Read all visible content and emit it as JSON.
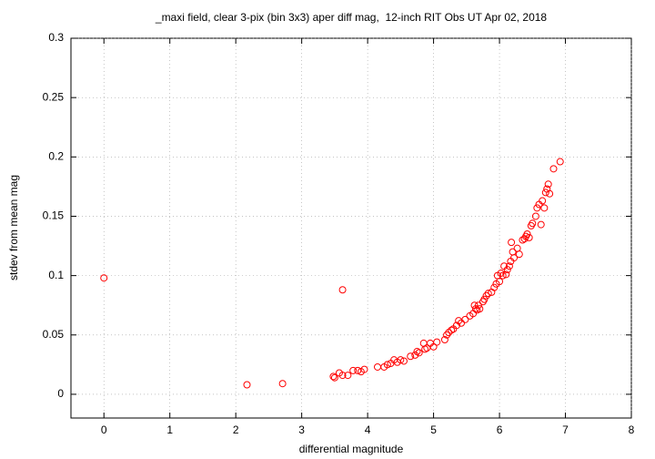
{
  "chart_data": {
    "type": "scatter",
    "title": "_maxi field, clear 3-pix (bin 3x3) aper diff mag,  12-inch RIT Obs UT Apr 02, 2018",
    "xlabel": "differential magnitude",
    "ylabel": "stdev from mean mag",
    "xlim": [
      -0.5,
      8
    ],
    "ylim": [
      -0.02,
      0.3
    ],
    "xticks": [
      0,
      1,
      2,
      3,
      4,
      5,
      6,
      7,
      8
    ],
    "yticks": [
      0,
      0.05,
      0.1,
      0.15,
      0.2,
      0.25,
      0.3
    ],
    "grid": true,
    "series": [
      {
        "color": "#ff0000",
        "x": [
          0,
          2.17,
          2.71,
          3.62,
          3.48,
          3.5,
          3.57,
          3.62,
          3.7,
          3.78,
          3.85,
          3.9,
          3.95,
          4.15,
          4.25,
          4.3,
          4.35,
          4.4,
          4.45,
          4.5,
          4.55,
          4.65,
          4.72,
          4.75,
          4.78,
          4.85,
          4.87,
          4.9,
          4.95,
          5.0,
          5.05,
          5.17,
          5.2,
          5.23,
          5.27,
          5.3,
          5.35,
          5.38,
          5.42,
          5.48,
          5.55,
          5.6,
          5.62,
          5.64,
          5.66,
          5.68,
          5.7,
          5.75,
          5.77,
          5.8,
          5.83,
          5.88,
          5.92,
          5.95,
          5.97,
          6.0,
          6.02,
          6.05,
          6.07,
          6.1,
          6.12,
          6.15,
          6.17,
          6.18,
          6.2,
          6.22,
          6.27,
          6.3,
          6.35,
          6.38,
          6.4,
          6.42,
          6.45,
          6.48,
          6.5,
          6.55,
          6.57,
          6.6,
          6.63,
          6.65,
          6.68,
          6.7,
          6.72,
          6.74,
          6.76,
          6.82,
          6.92
        ],
        "values": [
          0.098,
          0.008,
          0.009,
          0.088,
          0.015,
          0.014,
          0.018,
          0.016,
          0.016,
          0.02,
          0.02,
          0.019,
          0.021,
          0.023,
          0.023,
          0.025,
          0.026,
          0.029,
          0.027,
          0.029,
          0.028,
          0.032,
          0.033,
          0.036,
          0.035,
          0.043,
          0.038,
          0.039,
          0.043,
          0.04,
          0.044,
          0.046,
          0.05,
          0.052,
          0.054,
          0.055,
          0.058,
          0.062,
          0.06,
          0.063,
          0.066,
          0.068,
          0.075,
          0.072,
          0.071,
          0.075,
          0.072,
          0.078,
          0.08,
          0.083,
          0.085,
          0.086,
          0.09,
          0.093,
          0.1,
          0.095,
          0.102,
          0.1,
          0.108,
          0.101,
          0.105,
          0.108,
          0.112,
          0.128,
          0.12,
          0.115,
          0.123,
          0.118,
          0.13,
          0.131,
          0.133,
          0.135,
          0.132,
          0.142,
          0.144,
          0.15,
          0.157,
          0.16,
          0.143,
          0.163,
          0.157,
          0.17,
          0.173,
          0.177,
          0.169,
          0.19,
          0.196
        ]
      }
    ]
  }
}
